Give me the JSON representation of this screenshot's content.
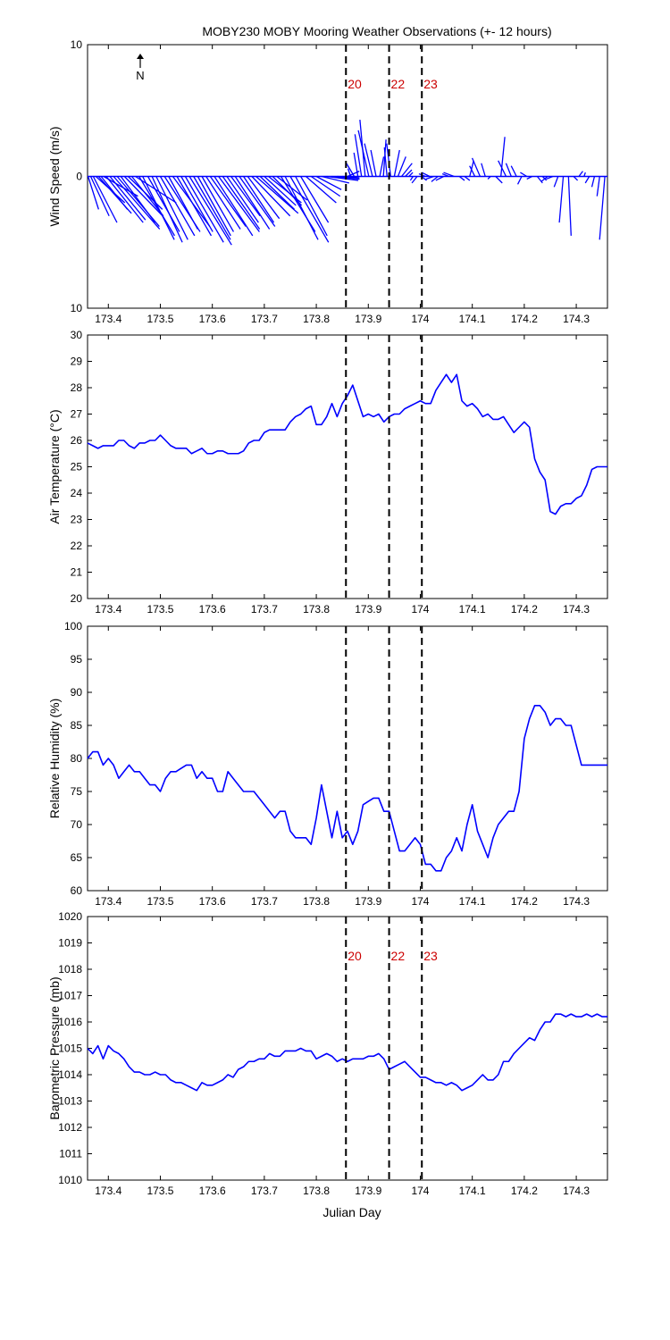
{
  "title": "MOBY230 MOBY Mooring Weather Observations (+- 12 hours)",
  "xlabel": "Julian Day",
  "xlim": [
    173.36,
    174.36
  ],
  "xticks": [
    173.4,
    173.5,
    173.6,
    173.7,
    173.8,
    173.9,
    174,
    174.1,
    174.2,
    174.3
  ],
  "xtick_labels": [
    "173.4",
    "173.5",
    "173.6",
    "173.7",
    "173.8",
    "173.9",
    "174",
    "174.1",
    "174.2",
    "174.3"
  ],
  "event_lines": [
    173.857,
    173.94,
    174.003
  ],
  "event_labels": [
    "20",
    "22",
    "23"
  ],
  "colors": {
    "data": "#0000ff",
    "event_label": "#cc0000",
    "axes": "#000000"
  },
  "north_label": "N",
  "chart_data": [
    {
      "type": "quiver",
      "ylabel": "Wind Speed (m/s)",
      "ylim": [
        -10,
        10
      ],
      "yticks": [
        -10,
        0,
        10
      ],
      "ytick_labels": [
        "10",
        "0",
        "10"
      ],
      "show_event_labels": true,
      "show_north_arrow": true,
      "x": [
        173.361,
        173.366,
        173.371,
        173.376,
        173.381,
        173.386,
        173.391,
        173.396,
        173.403,
        173.41,
        173.417,
        173.424,
        173.431,
        173.438,
        173.445,
        173.452,
        173.459,
        173.466,
        173.476,
        173.484,
        173.492,
        173.5,
        173.508,
        173.516,
        173.524,
        173.532,
        173.54,
        173.548,
        173.556,
        173.564,
        173.572,
        173.58,
        173.588,
        173.596,
        173.604,
        173.612,
        173.62,
        173.628,
        173.636,
        173.644,
        173.652,
        173.66,
        173.668,
        173.676,
        173.684,
        173.692,
        173.7,
        173.708,
        173.716,
        173.724,
        173.732,
        173.74,
        173.75,
        173.76,
        173.77,
        173.78,
        173.79,
        173.8,
        173.81,
        173.82,
        173.83,
        173.84,
        173.85,
        173.86,
        173.866,
        173.873,
        173.88,
        173.887,
        173.894,
        173.901,
        173.908,
        173.915,
        173.922,
        173.929,
        173.936,
        173.943,
        173.95,
        173.957,
        173.964,
        173.971,
        173.978,
        173.986,
        173.994,
        174.002,
        174.01,
        174.018,
        174.026,
        174.034,
        174.045,
        174.055,
        174.065,
        174.075,
        174.085,
        174.095,
        174.105,
        174.115,
        174.125,
        174.135,
        174.145,
        174.155,
        174.165,
        174.175,
        174.185,
        174.195,
        174.205,
        174.215,
        174.225,
        174.235,
        174.245,
        174.255,
        174.265,
        174.275,
        174.285,
        174.295,
        174.305,
        174.315,
        174.325,
        174.335,
        174.345,
        174.355
      ],
      "u": [
        0.8,
        1.4,
        1.8,
        2.2,
        2.5,
        2.0,
        2.6,
        2.8,
        2.7,
        3.5,
        3.2,
        2.6,
        2.9,
        2.6,
        2.4,
        3.1,
        2.7,
        2.4,
        2.4,
        2.3,
        2.4,
        2.6,
        2.7,
        2.2,
        2.8,
        2.6,
        2.4,
        2.9,
        3.2,
        2.8,
        2.5,
        2.4,
        2.6,
        2.7,
        2.9,
        3.1,
        2.8,
        2.4,
        2.2,
        2.6,
        2.7,
        2.3,
        2.4,
        2.9,
        3.2,
        2.6,
        2.4,
        2.5,
        2.2,
        2.3,
        2.6,
        2.5,
        2.9,
        2.4,
        2.1,
        2.3,
        2.2,
        1.9,
        2.1,
        2.4,
        2.1,
        1.6,
        1.3,
        0.9,
        -0.2,
        -0.6,
        -0.3,
        -0.5,
        -0.4,
        -0.8,
        -0.6,
        -0.4,
        0.3,
        0.2,
        -0.2,
        -0.3,
        0.4,
        0.6,
        0.8,
        0.5,
        0.3,
        -0.2,
        -0.4,
        0.4,
        -0.5,
        -0.6,
        -0.6,
        -0.5,
        -0.6,
        -0.5,
        -0.8,
        0.4,
        0.4,
        0.3,
        -0.4,
        -0.6,
        -0.3,
        -0.2,
        0.5,
        0.3,
        -0.6,
        -0.4,
        -0.4,
        -0.3,
        -0.5,
        -0.4,
        0.4,
        0.3,
        -0.5,
        -0.5,
        -0.3,
        -0.3,
        0.2,
        0.3,
        0.3,
        0.1,
        -0.3,
        -0.2,
        -0.2,
        -0.4
      ],
      "v": [
        -2.5,
        -3.0,
        -3.5,
        -2.0,
        -2.8,
        -2.5,
        -1.5,
        -3.5,
        -3.3,
        -4.0,
        -3.8,
        -3.5,
        -3.0,
        -2.5,
        -3.0,
        -2.0,
        -4.5,
        -4.8,
        -4.2,
        -5.0,
        -4.8,
        -4.5,
        -4.2,
        -4.0,
        -3.8,
        -4.5,
        -4.2,
        -5.0,
        -5.2,
        -4.8,
        -4.5,
        -4.2,
        -4.0,
        -3.8,
        -4.5,
        -4.2,
        -4.0,
        -3.5,
        -3.0,
        -4.0,
        -3.8,
        -3.5,
        -3.2,
        -3.0,
        -2.8,
        -2.5,
        -2.2,
        -2.0,
        -2.2,
        -1.8,
        -4.2,
        -4.8,
        -5.0,
        -4.5,
        -3.5,
        -2.0,
        -1.5,
        -1.0,
        -0.5,
        -0.3,
        -0.2,
        -0.1,
        -0.1,
        0.4,
        0.6,
        1.0,
        1.8,
        3.2,
        4.3,
        3.5,
        2.5,
        2.0,
        1.5,
        2.8,
        2.2,
        2.5,
        2.0,
        1.5,
        1.0,
        0.5,
        0.3,
        -0.3,
        -0.5,
        -0.3,
        0.2,
        0.3,
        -0.2,
        -0.4,
        -0.3,
        0.2,
        0.3,
        -0.3,
        -0.3,
        1.2,
        0.8,
        1.4,
        1.0,
        -0.2,
        -0.5,
        3.0,
        1.2,
        1.0,
        0.8,
        -0.6,
        0.3,
        -0.2,
        -0.5,
        -0.3,
        -0.4,
        -0.2,
        -0.8,
        -3.5,
        -4.5,
        -0.3,
        0.4,
        0.3,
        -0.5,
        -0.8,
        -1.5,
        -4.8
      ]
    },
    {
      "type": "line",
      "ylabel": "Air Temperature (°C)",
      "ylim": [
        20,
        30
      ],
      "yticks": [
        20,
        21,
        22,
        23,
        24,
        25,
        26,
        27,
        28,
        29,
        30
      ],
      "ytick_labels": [
        "20",
        "21",
        "22",
        "23",
        "24",
        "25",
        "26",
        "27",
        "28",
        "29",
        "30"
      ],
      "show_event_labels": false,
      "x": [
        173.36,
        173.37,
        173.38,
        173.39,
        173.4,
        173.41,
        173.42,
        173.43,
        173.44,
        173.45,
        173.46,
        173.47,
        173.48,
        173.49,
        173.5,
        173.51,
        173.52,
        173.53,
        173.54,
        173.55,
        173.56,
        173.57,
        173.58,
        173.59,
        173.6,
        173.61,
        173.62,
        173.63,
        173.64,
        173.65,
        173.66,
        173.67,
        173.68,
        173.69,
        173.7,
        173.71,
        173.72,
        173.73,
        173.74,
        173.75,
        173.76,
        173.77,
        173.78,
        173.79,
        173.8,
        173.81,
        173.82,
        173.83,
        173.84,
        173.85,
        173.86,
        173.87,
        173.88,
        173.89,
        173.9,
        173.91,
        173.92,
        173.93,
        173.94,
        173.95,
        173.96,
        173.97,
        173.98,
        173.99,
        174.0,
        174.01,
        174.02,
        174.03,
        174.04,
        174.05,
        174.06,
        174.07,
        174.08,
        174.09,
        174.1,
        174.11,
        174.12,
        174.13,
        174.14,
        174.15,
        174.16,
        174.17,
        174.18,
        174.19,
        174.2,
        174.21,
        174.22,
        174.23,
        174.24,
        174.25,
        174.26,
        174.27,
        174.28,
        174.29,
        174.3,
        174.31,
        174.32,
        174.33,
        174.34,
        174.35,
        174.36
      ],
      "y": [
        25.9,
        25.8,
        25.7,
        25.8,
        25.8,
        25.8,
        26.0,
        26.0,
        25.8,
        25.7,
        25.9,
        25.9,
        26.0,
        26.0,
        26.2,
        26.0,
        25.8,
        25.7,
        25.7,
        25.7,
        25.5,
        25.6,
        25.7,
        25.5,
        25.5,
        25.6,
        25.6,
        25.5,
        25.5,
        25.5,
        25.6,
        25.9,
        26.0,
        26.0,
        26.3,
        26.4,
        26.4,
        26.4,
        26.4,
        26.7,
        26.9,
        27.0,
        27.2,
        27.3,
        26.6,
        26.6,
        26.9,
        27.4,
        26.9,
        27.4,
        27.7,
        28.1,
        27.5,
        26.9,
        27.0,
        26.9,
        27.0,
        26.7,
        26.9,
        27.0,
        27.0,
        27.2,
        27.3,
        27.4,
        27.5,
        27.4,
        27.4,
        27.9,
        28.2,
        28.5,
        28.2,
        28.5,
        27.5,
        27.3,
        27.4,
        27.2,
        26.9,
        27.0,
        26.8,
        26.8,
        26.9,
        26.6,
        26.3,
        26.5,
        26.7,
        26.5,
        25.3,
        24.8,
        24.5,
        23.3,
        23.2,
        23.5,
        23.6,
        23.6,
        23.8,
        23.9,
        24.3,
        24.9,
        25.0,
        25.0,
        25.0
      ]
    },
    {
      "type": "line",
      "ylabel": "Relative Humidity (%)",
      "ylim": [
        60,
        100
      ],
      "yticks": [
        60,
        65,
        70,
        75,
        80,
        85,
        90,
        95,
        100
      ],
      "ytick_labels": [
        "60",
        "65",
        "70",
        "75",
        "80",
        "85",
        "90",
        "95",
        "100"
      ],
      "show_event_labels": false,
      "x": [
        173.36,
        173.37,
        173.38,
        173.39,
        173.4,
        173.41,
        173.42,
        173.43,
        173.44,
        173.45,
        173.46,
        173.47,
        173.48,
        173.49,
        173.5,
        173.51,
        173.52,
        173.53,
        173.54,
        173.55,
        173.56,
        173.57,
        173.58,
        173.59,
        173.6,
        173.61,
        173.62,
        173.63,
        173.64,
        173.65,
        173.66,
        173.67,
        173.68,
        173.69,
        173.7,
        173.71,
        173.72,
        173.73,
        173.74,
        173.75,
        173.76,
        173.77,
        173.78,
        173.79,
        173.8,
        173.81,
        173.82,
        173.83,
        173.84,
        173.85,
        173.86,
        173.87,
        173.88,
        173.89,
        173.9,
        173.91,
        173.92,
        173.93,
        173.94,
        173.95,
        173.96,
        173.97,
        173.98,
        173.99,
        174.0,
        174.01,
        174.02,
        174.03,
        174.04,
        174.05,
        174.06,
        174.07,
        174.08,
        174.09,
        174.1,
        174.11,
        174.12,
        174.13,
        174.14,
        174.15,
        174.16,
        174.17,
        174.18,
        174.19,
        174.2,
        174.21,
        174.22,
        174.23,
        174.24,
        174.25,
        174.26,
        174.27,
        174.28,
        174.29,
        174.3,
        174.31,
        174.32,
        174.33,
        174.34,
        174.35,
        174.36
      ],
      "y": [
        80,
        81,
        81,
        79,
        80,
        79,
        77,
        78,
        79,
        78,
        78,
        77,
        76,
        76,
        75,
        77,
        78,
        78,
        78.5,
        79,
        79,
        77,
        78,
        77,
        77,
        75,
        75,
        78,
        77,
        76,
        75,
        75,
        75,
        74,
        73,
        72,
        71,
        72,
        72,
        69,
        68,
        68,
        68,
        67,
        71,
        76,
        72,
        68,
        72,
        68,
        69,
        67,
        69,
        73,
        73.5,
        74,
        74,
        72,
        72,
        69,
        66,
        66,
        67,
        68,
        67,
        64,
        64,
        63,
        63,
        65,
        66,
        68,
        66,
        70,
        73,
        69,
        67,
        65,
        68,
        70,
        71,
        72,
        72,
        75,
        83,
        86,
        88,
        88,
        87,
        85,
        86,
        86,
        85,
        85,
        82,
        79,
        79,
        79,
        79,
        79,
        79
      ]
    },
    {
      "type": "line",
      "ylabel": "Barometric Pressure (mb)",
      "ylim": [
        1010,
        1020
      ],
      "yticks": [
        1010,
        1011,
        1012,
        1013,
        1014,
        1015,
        1016,
        1017,
        1018,
        1019,
        1020
      ],
      "ytick_labels": [
        "1010",
        "1011",
        "1012",
        "1013",
        "1014",
        "1015",
        "1016",
        "1017",
        "1018",
        "1019",
        "1020"
      ],
      "show_event_labels": true,
      "x": [
        173.36,
        173.37,
        173.38,
        173.39,
        173.4,
        173.41,
        173.42,
        173.43,
        173.44,
        173.45,
        173.46,
        173.47,
        173.48,
        173.49,
        173.5,
        173.51,
        173.52,
        173.53,
        173.54,
        173.55,
        173.56,
        173.57,
        173.58,
        173.59,
        173.6,
        173.61,
        173.62,
        173.63,
        173.64,
        173.65,
        173.66,
        173.67,
        173.68,
        173.69,
        173.7,
        173.71,
        173.72,
        173.73,
        173.74,
        173.75,
        173.76,
        173.77,
        173.78,
        173.79,
        173.8,
        173.81,
        173.82,
        173.83,
        173.84,
        173.85,
        173.86,
        173.87,
        173.88,
        173.89,
        173.9,
        173.91,
        173.92,
        173.93,
        173.94,
        173.95,
        173.96,
        173.97,
        173.98,
        173.99,
        174.0,
        174.01,
        174.02,
        174.03,
        174.04,
        174.05,
        174.06,
        174.07,
        174.08,
        174.09,
        174.1,
        174.11,
        174.12,
        174.13,
        174.14,
        174.15,
        174.16,
        174.17,
        174.18,
        174.19,
        174.2,
        174.21,
        174.22,
        174.23,
        174.24,
        174.25,
        174.26,
        174.27,
        174.28,
        174.29,
        174.3,
        174.31,
        174.32,
        174.33,
        174.34,
        174.35,
        174.36
      ],
      "y": [
        1015.0,
        1014.8,
        1015.1,
        1014.6,
        1015.1,
        1014.9,
        1014.8,
        1014.6,
        1014.3,
        1014.1,
        1014.1,
        1014.0,
        1014.0,
        1014.1,
        1014.0,
        1014.0,
        1013.8,
        1013.7,
        1013.7,
        1013.6,
        1013.5,
        1013.4,
        1013.7,
        1013.6,
        1013.6,
        1013.7,
        1013.8,
        1014.0,
        1013.9,
        1014.2,
        1014.3,
        1014.5,
        1014.5,
        1014.6,
        1014.6,
        1014.8,
        1014.7,
        1014.7,
        1014.9,
        1014.9,
        1014.9,
        1015.0,
        1014.9,
        1014.9,
        1014.6,
        1014.7,
        1014.8,
        1014.7,
        1014.5,
        1014.6,
        1014.5,
        1014.6,
        1014.6,
        1014.6,
        1014.7,
        1014.7,
        1014.8,
        1014.6,
        1014.2,
        1014.3,
        1014.4,
        1014.5,
        1014.3,
        1014.1,
        1013.9,
        1013.9,
        1013.8,
        1013.7,
        1013.7,
        1013.6,
        1013.7,
        1013.6,
        1013.4,
        1013.5,
        1013.6,
        1013.8,
        1014.0,
        1013.8,
        1013.8,
        1014.0,
        1014.5,
        1014.5,
        1014.8,
        1015.0,
        1015.2,
        1015.4,
        1015.3,
        1015.7,
        1016.0,
        1016.0,
        1016.3,
        1016.3,
        1016.2,
        1016.3,
        1016.2,
        1016.2,
        1016.3,
        1016.2,
        1016.3,
        1016.2,
        1016.2
      ]
    }
  ]
}
